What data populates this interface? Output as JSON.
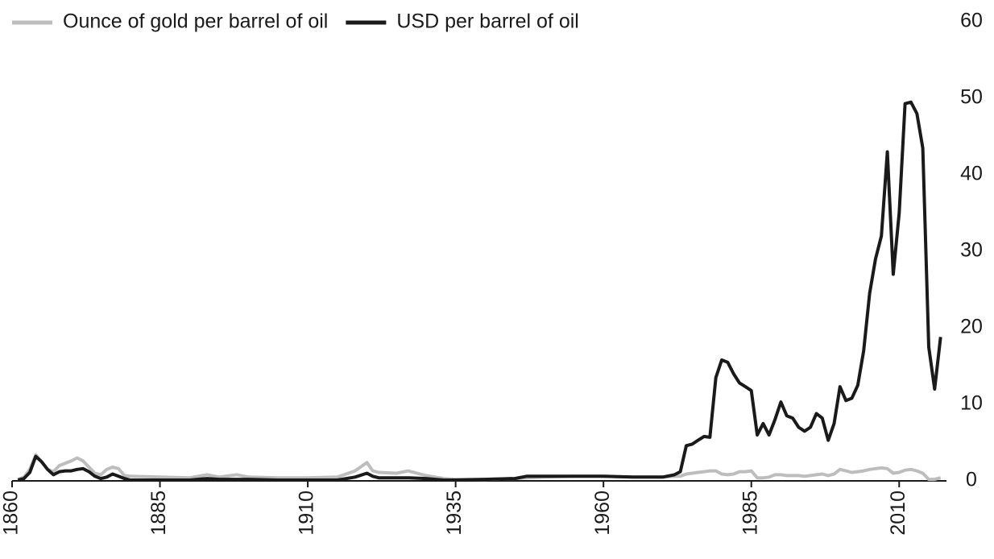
{
  "chart_data": {
    "type": "line",
    "x": [
      1861,
      1862,
      1863,
      1864,
      1865,
      1866,
      1867,
      1868,
      1869,
      1870,
      1871,
      1872,
      1873,
      1874,
      1875,
      1876,
      1877,
      1878,
      1879,
      1880,
      1885,
      1890,
      1893,
      1895,
      1898,
      1900,
      1905,
      1910,
      1915,
      1918,
      1920,
      1921,
      1922,
      1925,
      1927,
      1930,
      1933,
      1935,
      1940,
      1945,
      1947,
      1950,
      1955,
      1960,
      1965,
      1970,
      1972,
      1973,
      1974,
      1975,
      1976,
      1977,
      1978,
      1979,
      1980,
      1981,
      1982,
      1983,
      1984,
      1985,
      1986,
      1987,
      1988,
      1989,
      1990,
      1991,
      1992,
      1993,
      1994,
      1995,
      1996,
      1997,
      1998,
      1999,
      2000,
      2001,
      2002,
      2003,
      2004,
      2005,
      2006,
      2007,
      2008,
      2009,
      2010,
      2011,
      2012,
      2013,
      2014,
      2015,
      2016,
      2017
    ],
    "series": [
      {
        "name": "Ounce of gold per barrel of oil",
        "color": "#bdbdbd",
        "values": [
          0.2,
          0.5,
          1.5,
          3.4,
          2.5,
          1.5,
          1.2,
          2.0,
          2.3,
          2.6,
          3.0,
          2.6,
          1.8,
          1.0,
          0.8,
          1.5,
          1.8,
          1.6,
          0.7,
          0.6,
          0.5,
          0.4,
          0.8,
          0.5,
          0.8,
          0.5,
          0.4,
          0.4,
          0.5,
          1.3,
          2.4,
          1.3,
          1.1,
          1.0,
          1.3,
          0.7,
          0.3,
          0.2,
          0.2,
          0.3,
          0.4,
          0.5,
          0.6,
          0.6,
          0.5,
          0.5,
          0.6,
          0.6,
          0.9,
          1.0,
          1.1,
          1.2,
          1.3,
          1.3,
          0.9,
          0.8,
          0.9,
          1.2,
          1.2,
          1.3,
          0.4,
          0.4,
          0.5,
          0.8,
          0.8,
          0.7,
          0.7,
          0.7,
          0.6,
          0.7,
          0.8,
          0.9,
          0.7,
          0.9,
          1.5,
          1.3,
          1.1,
          1.2,
          1.3,
          1.5,
          1.6,
          1.7,
          1.6,
          1.0,
          1.1,
          1.4,
          1.5,
          1.3,
          1.0,
          0.2,
          0.2,
          0.4
        ]
      },
      {
        "name": "USD per barrel of oil",
        "color": "#1a1a1a",
        "values": [
          0.1,
          0.3,
          1.1,
          3.2,
          2.5,
          1.5,
          0.8,
          1.2,
          1.3,
          1.3,
          1.5,
          1.6,
          1.2,
          0.6,
          0.3,
          0.5,
          0.9,
          0.6,
          0.3,
          0.1,
          0.1,
          0.1,
          0.3,
          0.2,
          0.2,
          0.2,
          0.1,
          0.1,
          0.1,
          0.5,
          1.0,
          0.6,
          0.4,
          0.4,
          0.4,
          0.3,
          0.1,
          0.1,
          0.2,
          0.3,
          0.6,
          0.6,
          0.6,
          0.6,
          0.5,
          0.5,
          0.8,
          1.2,
          4.6,
          4.8,
          5.3,
          5.8,
          5.7,
          13.5,
          15.8,
          15.5,
          14,
          12.8,
          12.3,
          11.8,
          6,
          7.5,
          6,
          8,
          10.3,
          8.5,
          8.2,
          7,
          6.5,
          7,
          8.8,
          8.2,
          5.3,
          7.5,
          12.3,
          10.5,
          10.8,
          12.5,
          17,
          24.5,
          29,
          32,
          43,
          27,
          35,
          49.3,
          49.5,
          48,
          43.5,
          17.5,
          12,
          18.8
        ]
      }
    ],
    "xlim": [
      1860,
      2018
    ],
    "xticks": [
      1860,
      1885,
      1910,
      1935,
      1960,
      1985,
      2010
    ],
    "ylim": [
      0,
      60
    ],
    "yticks": [
      0,
      10,
      20,
      30,
      40,
      50,
      60
    ],
    "y_axis_side": "right",
    "legend": "top-left",
    "grid": false
  }
}
